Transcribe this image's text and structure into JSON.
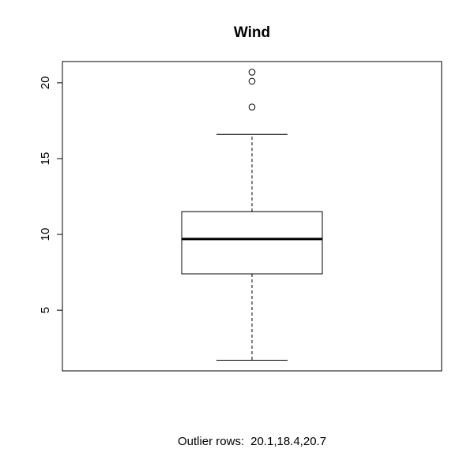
{
  "chart_data": {
    "type": "boxplot",
    "title": "Wind",
    "xlabel": "",
    "ylabel": "",
    "ylim": [
      1.0,
      21.4
    ],
    "yticks": [
      5,
      10,
      15,
      20
    ],
    "grid": false,
    "box": {
      "whisker_low": 1.7,
      "q1": 7.4,
      "median": 9.7,
      "q3": 11.5,
      "whisker_high": 16.6,
      "outliers": [
        20.1,
        18.4,
        20.7
      ]
    }
  },
  "caption": {
    "label": "Outlier rows:",
    "values": "20.1,18.4,20.7"
  }
}
